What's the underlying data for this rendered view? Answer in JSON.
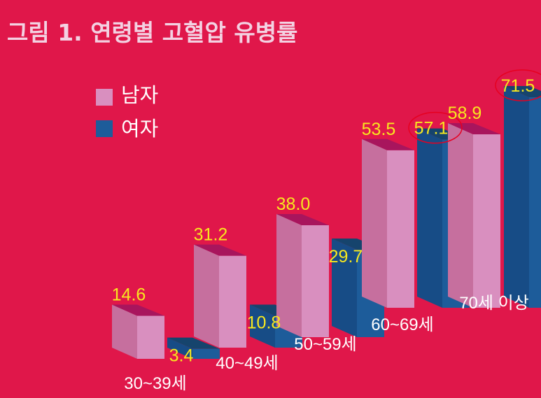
{
  "colors": {
    "background": "#e0174a",
    "male_front": "#d98fbf",
    "male_side": "#c66f9e",
    "male_top": "#a8155d",
    "female_front": "#1d5c9a",
    "female_side": "#174c86",
    "female_top": "#16446d",
    "value_text": "#f7e81f",
    "highlight_circle": "#e60020"
  },
  "chart_data": {
    "type": "bar",
    "title": "그림 1. 연령별 고혈압 유병률",
    "categories": [
      "30~39세",
      "40~49세",
      "50~59세",
      "60~69세",
      "70세 이상"
    ],
    "series": [
      {
        "name": "남자",
        "values": [
          14.6,
          31.2,
          38.0,
          53.5,
          58.9
        ]
      },
      {
        "name": "여자",
        "values": [
          3.4,
          10.8,
          29.7,
          57.1,
          71.5
        ]
      }
    ],
    "value_labels": {
      "남자": [
        "14.6",
        "31.2",
        "38.0",
        "53.5",
        "58.9"
      ],
      "여자": [
        "3.4",
        "10.8",
        "29.7",
        "57.1",
        "71.5"
      ]
    },
    "highlighted": [
      {
        "series": "여자",
        "category": "60~69세"
      },
      {
        "series": "여자",
        "category": "70세 이상"
      }
    ],
    "legend_position": "top-left",
    "style": "3d-bars",
    "grid": false
  }
}
